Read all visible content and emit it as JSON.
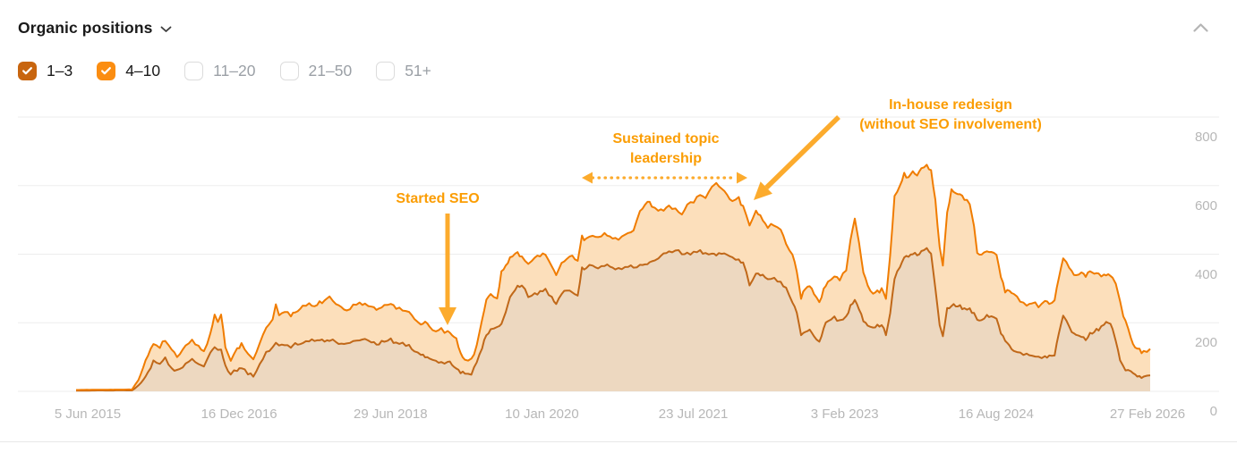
{
  "header": {
    "title": "Organic positions"
  },
  "icons": {
    "title_caret": "chevron-down",
    "collapse": "chevron-up"
  },
  "filters": [
    {
      "label": "1–3",
      "checked": true,
      "box_color": "#c8650f"
    },
    {
      "label": "4–10",
      "checked": true,
      "box_color": "#fb8d11"
    },
    {
      "label": "11–20",
      "checked": false,
      "box_color": null
    },
    {
      "label": "21–50",
      "checked": false,
      "box_color": null
    },
    {
      "label": "51+",
      "checked": false,
      "box_color": null
    }
  ],
  "colors": {
    "annotation_text": "#fb9d03",
    "annotation_arrow": "#fcab2d",
    "gridline": "#ededed",
    "axis_label": "#b7b7b7"
  },
  "chart_data": {
    "type": "area",
    "stacked": true,
    "title": "",
    "xlabel": "",
    "ylabel": "",
    "x_axis": {
      "tick_labels": [
        "5 Jun 2015",
        "16 Dec 2016",
        "29 Jun 2018",
        "10 Jan 2020",
        "23 Jul 2021",
        "3 Feb 2023",
        "16 Aug 2024",
        "27 Feb 2026"
      ]
    },
    "y_axis": {
      "tick_labels": [
        "800",
        "600",
        "400",
        "200",
        "0"
      ],
      "range": [
        0,
        800
      ],
      "side": "right",
      "grid": true
    },
    "series": [
      {
        "name": "1–3",
        "line_color": "#c06819",
        "fill_color": "#edd8c0"
      },
      {
        "name": "4–10",
        "line_color": "#f07c00",
        "fill_color": "#fcdfbb",
        "note": "stacked above 1–3; outer line = 1–3 + 4–10"
      }
    ],
    "points_format": [
      "t (0..1 of 5 Jun 2015 → 27 Feb 2026)",
      "positions 1–3",
      "positions 4–10"
    ],
    "points": [
      [
        0.0,
        2,
        2
      ],
      [
        0.052,
        3,
        2
      ],
      [
        0.058,
        15,
        15
      ],
      [
        0.067,
        55,
        50
      ],
      [
        0.072,
        85,
        55
      ],
      [
        0.078,
        78,
        50
      ],
      [
        0.083,
        98,
        54
      ],
      [
        0.089,
        70,
        50
      ],
      [
        0.094,
        60,
        40
      ],
      [
        0.102,
        80,
        48
      ],
      [
        0.108,
        95,
        55
      ],
      [
        0.114,
        78,
        50
      ],
      [
        0.119,
        72,
        46
      ],
      [
        0.125,
        110,
        58
      ],
      [
        0.129,
        128,
        94
      ],
      [
        0.132,
        118,
        82
      ],
      [
        0.135,
        125,
        103
      ],
      [
        0.139,
        70,
        60
      ],
      [
        0.144,
        48,
        40
      ],
      [
        0.15,
        62,
        58
      ],
      [
        0.154,
        68,
        67
      ],
      [
        0.16,
        52,
        56
      ],
      [
        0.165,
        46,
        46
      ],
      [
        0.171,
        80,
        60
      ],
      [
        0.177,
        112,
        73
      ],
      [
        0.183,
        125,
        80
      ],
      [
        0.186,
        138,
        112
      ],
      [
        0.189,
        132,
        90
      ],
      [
        0.194,
        138,
        90
      ],
      [
        0.2,
        132,
        90
      ],
      [
        0.204,
        135,
        90
      ],
      [
        0.211,
        142,
        103
      ],
      [
        0.217,
        148,
        107
      ],
      [
        0.222,
        145,
        103
      ],
      [
        0.229,
        150,
        112
      ],
      [
        0.236,
        152,
        121
      ],
      [
        0.242,
        145,
        110
      ],
      [
        0.247,
        138,
        102
      ],
      [
        0.252,
        140,
        95
      ],
      [
        0.258,
        145,
        103
      ],
      [
        0.264,
        148,
        112
      ],
      [
        0.269,
        150,
        105
      ],
      [
        0.275,
        142,
        103
      ],
      [
        0.282,
        138,
        102
      ],
      [
        0.287,
        145,
        107
      ],
      [
        0.293,
        148,
        102
      ],
      [
        0.298,
        140,
        102
      ],
      [
        0.304,
        138,
        97
      ],
      [
        0.31,
        132,
        98
      ],
      [
        0.315,
        120,
        92
      ],
      [
        0.321,
        108,
        84
      ],
      [
        0.325,
        100,
        102
      ],
      [
        0.329,
        92,
        93
      ],
      [
        0.335,
        88,
        84
      ],
      [
        0.34,
        86,
        92
      ],
      [
        0.346,
        85,
        85
      ],
      [
        0.35,
        78,
        84
      ],
      [
        0.354,
        68,
        82
      ],
      [
        0.358,
        55,
        55
      ],
      [
        0.362,
        50,
        42
      ],
      [
        0.368,
        48,
        42
      ],
      [
        0.373,
        90,
        45
      ],
      [
        0.378,
        130,
        75
      ],
      [
        0.382,
        165,
        103
      ],
      [
        0.386,
        180,
        98
      ],
      [
        0.392,
        188,
        82
      ],
      [
        0.396,
        195,
        150
      ],
      [
        0.4,
        230,
        138
      ],
      [
        0.404,
        272,
        118
      ],
      [
        0.411,
        305,
        99
      ],
      [
        0.415,
        310,
        82
      ],
      [
        0.421,
        275,
        97
      ],
      [
        0.427,
        280,
        105
      ],
      [
        0.432,
        290,
        105
      ],
      [
        0.437,
        295,
        103
      ],
      [
        0.443,
        272,
        90
      ],
      [
        0.447,
        258,
        82
      ],
      [
        0.452,
        285,
        87
      ],
      [
        0.457,
        295,
        90
      ],
      [
        0.462,
        285,
        107
      ],
      [
        0.467,
        278,
        100
      ],
      [
        0.471,
        362,
        86
      ],
      [
        0.475,
        358,
        82
      ],
      [
        0.481,
        368,
        84
      ],
      [
        0.486,
        360,
        85
      ],
      [
        0.492,
        368,
        92
      ],
      [
        0.497,
        362,
        90
      ],
      [
        0.502,
        355,
        87
      ],
      [
        0.508,
        362,
        90
      ],
      [
        0.514,
        368,
        90
      ],
      [
        0.519,
        362,
        108
      ],
      [
        0.525,
        368,
        152
      ],
      [
        0.532,
        372,
        183
      ],
      [
        0.536,
        378,
        162
      ],
      [
        0.542,
        385,
        147
      ],
      [
        0.547,
        400,
        128
      ],
      [
        0.552,
        405,
        135
      ],
      [
        0.558,
        412,
        120
      ],
      [
        0.564,
        400,
        116
      ],
      [
        0.569,
        398,
        142
      ],
      [
        0.575,
        405,
        147
      ],
      [
        0.581,
        408,
        164
      ],
      [
        0.586,
        400,
        162
      ],
      [
        0.592,
        405,
        193
      ],
      [
        0.596,
        398,
        207
      ],
      [
        0.601,
        402,
        188
      ],
      [
        0.606,
        395,
        175
      ],
      [
        0.611,
        390,
        162
      ],
      [
        0.617,
        385,
        175
      ],
      [
        0.621,
        375,
        160
      ],
      [
        0.627,
        310,
        172
      ],
      [
        0.633,
        345,
        177
      ],
      [
        0.637,
        340,
        172
      ],
      [
        0.644,
        325,
        153
      ],
      [
        0.65,
        330,
        158
      ],
      [
        0.656,
        322,
        148
      ],
      [
        0.661,
        300,
        130
      ],
      [
        0.667,
        262,
        133
      ],
      [
        0.671,
        230,
        118
      ],
      [
        0.675,
        165,
        107
      ],
      [
        0.679,
        172,
        128
      ],
      [
        0.683,
        178,
        134
      ],
      [
        0.687,
        158,
        127
      ],
      [
        0.692,
        142,
        116
      ],
      [
        0.696,
        185,
        113
      ],
      [
        0.7,
        205,
        115
      ],
      [
        0.706,
        212,
        118
      ],
      [
        0.711,
        205,
        120
      ],
      [
        0.717,
        215,
        137
      ],
      [
        0.721,
        248,
        192
      ],
      [
        0.725,
        270,
        235
      ],
      [
        0.729,
        240,
        190
      ],
      [
        0.733,
        205,
        140
      ],
      [
        0.737,
        188,
        117
      ],
      [
        0.742,
        185,
        97
      ],
      [
        0.746,
        195,
        93
      ],
      [
        0.75,
        192,
        103
      ],
      [
        0.754,
        165,
        103
      ],
      [
        0.758,
        230,
        165
      ],
      [
        0.762,
        330,
        238
      ],
      [
        0.767,
        360,
        240
      ],
      [
        0.771,
        390,
        242
      ],
      [
        0.775,
        398,
        227
      ],
      [
        0.779,
        405,
        233
      ],
      [
        0.783,
        398,
        232
      ],
      [
        0.787,
        408,
        237
      ],
      [
        0.792,
        418,
        242
      ],
      [
        0.796,
        400,
        240
      ],
      [
        0.8,
        300,
        260
      ],
      [
        0.804,
        190,
        230
      ],
      [
        0.807,
        158,
        210
      ],
      [
        0.811,
        240,
        280
      ],
      [
        0.815,
        250,
        338
      ],
      [
        0.819,
        248,
        330
      ],
      [
        0.823,
        245,
        325
      ],
      [
        0.827,
        240,
        320
      ],
      [
        0.832,
        238,
        307
      ],
      [
        0.836,
        225,
        255
      ],
      [
        0.839,
        212,
        190
      ],
      [
        0.843,
        208,
        190
      ],
      [
        0.848,
        220,
        188
      ],
      [
        0.852,
        215,
        187
      ],
      [
        0.857,
        210,
        188
      ],
      [
        0.861,
        172,
        158
      ],
      [
        0.865,
        152,
        140
      ],
      [
        0.869,
        128,
        160
      ],
      [
        0.873,
        120,
        162
      ],
      [
        0.879,
        112,
        150
      ],
      [
        0.885,
        105,
        147
      ],
      [
        0.89,
        102,
        156
      ],
      [
        0.896,
        100,
        150
      ],
      [
        0.902,
        105,
        157
      ],
      [
        0.906,
        102,
        153
      ],
      [
        0.911,
        108,
        154
      ],
      [
        0.915,
        170,
        160
      ],
      [
        0.919,
        222,
        168
      ],
      [
        0.922,
        205,
        167
      ],
      [
        0.927,
        172,
        180
      ],
      [
        0.931,
        162,
        176
      ],
      [
        0.936,
        158,
        187
      ],
      [
        0.94,
        152,
        186
      ],
      [
        0.944,
        165,
        187
      ],
      [
        0.948,
        172,
        170
      ],
      [
        0.952,
        180,
        158
      ],
      [
        0.957,
        195,
        140
      ],
      [
        0.961,
        202,
        138
      ],
      [
        0.965,
        185,
        145
      ],
      [
        0.968,
        150,
        165
      ],
      [
        0.972,
        92,
        168
      ],
      [
        0.975,
        70,
        148
      ],
      [
        0.977,
        62,
        143
      ],
      [
        0.982,
        55,
        97
      ],
      [
        0.986,
        48,
        77
      ],
      [
        0.99,
        45,
        73
      ],
      [
        0.994,
        42,
        70
      ],
      [
        0.997,
        40,
        70
      ],
      [
        1.0,
        48,
        74
      ]
    ],
    "annotations": [
      {
        "text": "Started SEO",
        "arrow": "vertical-down-solid"
      },
      {
        "text": "Sustained topic\nleadership",
        "arrow": "horizontal-dotted-double"
      },
      {
        "text": "In-house redesign\n(without SEO involvement)",
        "arrow": "diagonal-down-left-solid"
      }
    ]
  }
}
